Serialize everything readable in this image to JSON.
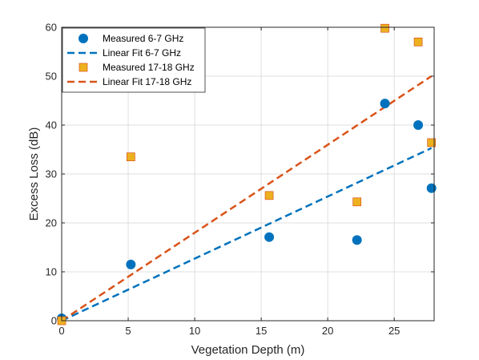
{
  "chart_data": {
    "type": "scatter",
    "xlabel": "Vegetation Depth (m)",
    "ylabel": "Excess Loss (dB)",
    "xlim": [
      0,
      28
    ],
    "ylim": [
      0,
      60
    ],
    "xticks": [
      0,
      5,
      10,
      15,
      20,
      25
    ],
    "yticks": [
      0,
      10,
      20,
      30,
      40,
      50,
      60
    ],
    "grid": true,
    "legend_position": "top-left",
    "series": [
      {
        "name": "Measured 6-7 GHz",
        "kind": "scatter",
        "marker": "circle",
        "color": "#0072BD",
        "x": [
          0,
          5.2,
          15.6,
          22.2,
          24.3,
          26.8,
          27.8
        ],
        "y": [
          0.5,
          11.5,
          17.1,
          16.5,
          44.4,
          40.0,
          27.1
        ]
      },
      {
        "name": "Linear Fit 6-7 GHz",
        "kind": "line",
        "dash": "dashed",
        "color": "#0072BD",
        "x": [
          0,
          27.8
        ],
        "y": [
          0,
          35.3
        ]
      },
      {
        "name": "Measured 17-18 GHz",
        "kind": "scatter",
        "marker": "square",
        "color": "#EDB120",
        "x": [
          0,
          5.2,
          15.6,
          22.2,
          24.3,
          26.8,
          27.8
        ],
        "y": [
          0,
          33.5,
          25.6,
          24.3,
          59.8,
          57.0,
          36.4
        ]
      },
      {
        "name": "Linear Fit 17-18 GHz",
        "kind": "line",
        "dash": "dashed",
        "color": "#D95319",
        "x": [
          0,
          27.8
        ],
        "y": [
          0,
          50.0
        ]
      }
    ]
  }
}
